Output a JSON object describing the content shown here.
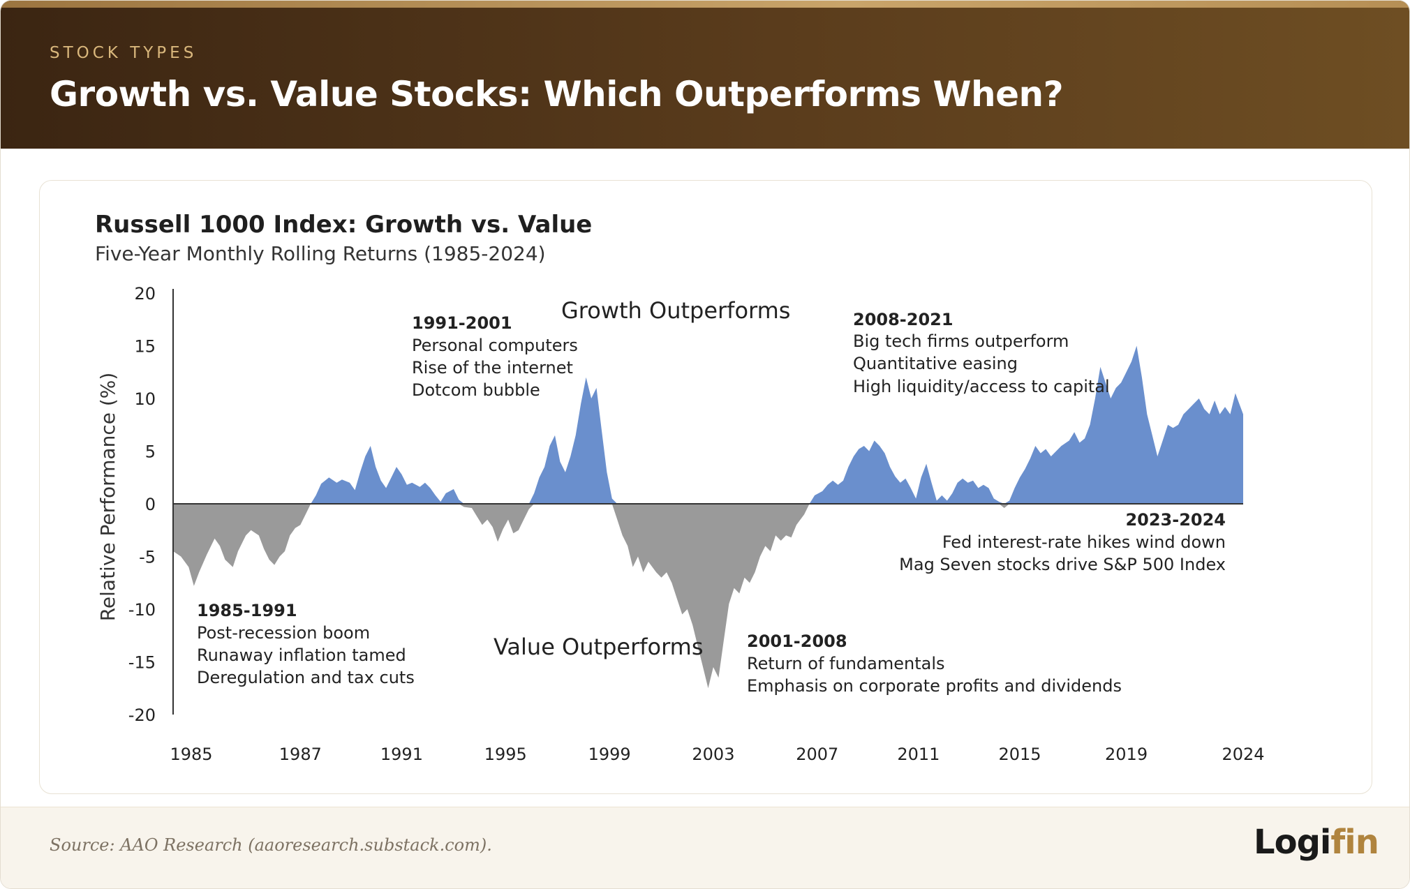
{
  "header": {
    "eyebrow": "STOCK TYPES",
    "title": "Growth vs. Value Stocks: Which Outperforms When?"
  },
  "footer": {
    "source": "Source: AAO Research (aaoresearch.substack.com).",
    "logo_part1": "Logi",
    "logo_part2": "fin"
  },
  "colors": {
    "growth": "#6a8fcd",
    "value": "#9a9a9a",
    "header_accent": "#d9b77c",
    "brand": "#b0843e"
  },
  "chart_data": {
    "type": "area",
    "title": "Russell 1000 Index: Growth vs. Value",
    "subtitle": "Five-Year Monthly Rolling Returns (1985-2024)",
    "ylabel": "Relative Performance (%)",
    "ylim": [
      -20,
      20
    ],
    "yticks": [
      "20",
      "15",
      "10",
      "5",
      "0",
      "-5",
      "-10",
      "-15",
      "-20"
    ],
    "xtick_labels": [
      "1985",
      "1987",
      "1991",
      "1995",
      "1999",
      "2003",
      "2007",
      "2011",
      "2015",
      "2019",
      "2024"
    ],
    "xtick_positions": [
      1985.0,
      1989.2,
      1993.1,
      1997.1,
      2001.1,
      2005.1,
      2009.1,
      2013.0,
      2016.9,
      2021.0,
      2025.5
    ],
    "xlim": [
      1984.3,
      2025.5
    ],
    "region_labels": {
      "positive": "Growth Outperforms",
      "negative": "Value Outperforms"
    },
    "annotations": [
      {
        "period": "1991-2001",
        "lines": [
          "Personal computers",
          "Rise of the internet",
          "Dotcom bubble"
        ]
      },
      {
        "period": "2008-2021",
        "lines": [
          "Big tech firms outperform",
          "Quantitative easing",
          "High liquidity/access to capital"
        ]
      },
      {
        "period": "2023-2024",
        "lines": [
          "Fed interest-rate hikes wind down",
          "Mag Seven stocks drive S&P 500 Index"
        ]
      },
      {
        "period": "1985-1991",
        "lines": [
          "Post-recession boom",
          "Runaway inflation tamed",
          "Deregulation and tax cuts"
        ]
      },
      {
        "period": "2001-2008",
        "lines": [
          "Return of fundamentals",
          "Emphasis on corporate profits and dividends"
        ]
      }
    ],
    "series": [
      {
        "points": [
          [
            1984.3,
            -4.5
          ],
          [
            1984.6,
            -5.0
          ],
          [
            1984.9,
            -6.0
          ],
          [
            1985.1,
            -7.8
          ],
          [
            1985.3,
            -6.5
          ],
          [
            1985.6,
            -4.8
          ],
          [
            1985.9,
            -3.3
          ],
          [
            1986.1,
            -4.0
          ],
          [
            1986.3,
            -5.3
          ],
          [
            1986.6,
            -6.0
          ],
          [
            1986.8,
            -4.5
          ],
          [
            1987.1,
            -3.0
          ],
          [
            1987.3,
            -2.5
          ],
          [
            1987.6,
            -3.0
          ],
          [
            1987.8,
            -4.3
          ],
          [
            1988.0,
            -5.3
          ],
          [
            1988.2,
            -5.8
          ],
          [
            1988.4,
            -5.0
          ],
          [
            1988.6,
            -4.5
          ],
          [
            1988.8,
            -3.0
          ],
          [
            1989.0,
            -2.3
          ],
          [
            1989.2,
            -2.0
          ],
          [
            1989.4,
            -1.0
          ],
          [
            1989.6,
            0.0
          ],
          [
            1989.8,
            0.8
          ],
          [
            1990.0,
            1.9
          ],
          [
            1990.3,
            2.5
          ],
          [
            1990.6,
            2.0
          ],
          [
            1990.8,
            2.3
          ],
          [
            1991.1,
            2.0
          ],
          [
            1991.3,
            1.3
          ],
          [
            1991.5,
            3.0
          ],
          [
            1991.7,
            4.5
          ],
          [
            1991.9,
            5.5
          ],
          [
            1992.1,
            3.5
          ],
          [
            1992.3,
            2.2
          ],
          [
            1992.5,
            1.5
          ],
          [
            1992.7,
            2.5
          ],
          [
            1992.9,
            3.5
          ],
          [
            1993.1,
            2.8
          ],
          [
            1993.3,
            1.8
          ],
          [
            1993.5,
            2.0
          ],
          [
            1993.8,
            1.6
          ],
          [
            1994.0,
            2.0
          ],
          [
            1994.2,
            1.5
          ],
          [
            1994.4,
            0.8
          ],
          [
            1994.6,
            0.2
          ],
          [
            1994.8,
            1.0
          ],
          [
            1995.1,
            1.4
          ],
          [
            1995.3,
            0.4
          ],
          [
            1995.5,
            -0.3
          ],
          [
            1995.8,
            -0.4
          ],
          [
            1996.0,
            -1.2
          ],
          [
            1996.2,
            -2.0
          ],
          [
            1996.4,
            -1.5
          ],
          [
            1996.6,
            -2.2
          ],
          [
            1996.8,
            -3.6
          ],
          [
            1997.0,
            -2.4
          ],
          [
            1997.2,
            -1.5
          ],
          [
            1997.4,
            -2.8
          ],
          [
            1997.6,
            -2.5
          ],
          [
            1997.8,
            -1.5
          ],
          [
            1998.0,
            -0.5
          ],
          [
            1998.2,
            1.0
          ],
          [
            1998.4,
            2.5
          ],
          [
            1998.6,
            3.5
          ],
          [
            1998.8,
            5.5
          ],
          [
            1999.0,
            6.5
          ],
          [
            1999.2,
            4.0
          ],
          [
            1999.4,
            3.0
          ],
          [
            1999.6,
            4.5
          ],
          [
            1999.8,
            6.5
          ],
          [
            2000.0,
            9.5
          ],
          [
            2000.2,
            12.0
          ],
          [
            2000.4,
            10.0
          ],
          [
            2000.6,
            11.0
          ],
          [
            2000.8,
            7.0
          ],
          [
            2001.0,
            3.0
          ],
          [
            2001.2,
            0.5
          ],
          [
            2001.4,
            -1.5
          ],
          [
            2001.6,
            -3.0
          ],
          [
            2001.8,
            -4.0
          ],
          [
            2002.0,
            -6.0
          ],
          [
            2002.2,
            -5.0
          ],
          [
            2002.4,
            -6.5
          ],
          [
            2002.6,
            -5.5
          ],
          [
            2002.9,
            -6.5
          ],
          [
            2003.1,
            -7.0
          ],
          [
            2003.3,
            -6.5
          ],
          [
            2003.5,
            -7.5
          ],
          [
            2003.7,
            -9.0
          ],
          [
            2003.9,
            -10.5
          ],
          [
            2004.1,
            -10.0
          ],
          [
            2004.3,
            -11.5
          ],
          [
            2004.5,
            -13.5
          ],
          [
            2004.7,
            -15.5
          ],
          [
            2004.9,
            -17.5
          ],
          [
            2005.1,
            -15.5
          ],
          [
            2005.3,
            -16.5
          ],
          [
            2005.5,
            -13.0
          ],
          [
            2005.7,
            -9.5
          ],
          [
            2005.9,
            -8.0
          ],
          [
            2006.1,
            -8.5
          ],
          [
            2006.3,
            -7.0
          ],
          [
            2006.5,
            -7.5
          ],
          [
            2006.7,
            -6.5
          ],
          [
            2006.9,
            -5.0
          ],
          [
            2007.1,
            -4.0
          ],
          [
            2007.3,
            -4.5
          ],
          [
            2007.5,
            -3.0
          ],
          [
            2007.7,
            -3.5
          ],
          [
            2007.9,
            -3.0
          ],
          [
            2008.1,
            -3.2
          ],
          [
            2008.3,
            -2.0
          ],
          [
            2008.6,
            -1.0
          ],
          [
            2008.8,
            0.0
          ],
          [
            2009.0,
            0.8
          ],
          [
            2009.3,
            1.2
          ],
          [
            2009.5,
            1.8
          ],
          [
            2009.7,
            2.2
          ],
          [
            2009.9,
            1.8
          ],
          [
            2010.1,
            2.2
          ],
          [
            2010.3,
            3.5
          ],
          [
            2010.5,
            4.5
          ],
          [
            2010.7,
            5.2
          ],
          [
            2010.9,
            5.5
          ],
          [
            2011.1,
            5.0
          ],
          [
            2011.3,
            6.0
          ],
          [
            2011.5,
            5.5
          ],
          [
            2011.7,
            4.8
          ],
          [
            2011.9,
            3.5
          ],
          [
            2012.1,
            2.6
          ],
          [
            2012.3,
            2.0
          ],
          [
            2012.5,
            2.4
          ],
          [
            2012.7,
            1.5
          ],
          [
            2012.9,
            0.5
          ],
          [
            2013.1,
            2.5
          ],
          [
            2013.3,
            3.8
          ],
          [
            2013.5,
            2.0
          ],
          [
            2013.7,
            0.3
          ],
          [
            2013.9,
            0.8
          ],
          [
            2014.1,
            0.3
          ],
          [
            2014.3,
            1.0
          ],
          [
            2014.5,
            2.0
          ],
          [
            2014.7,
            2.4
          ],
          [
            2014.9,
            2.0
          ],
          [
            2015.1,
            2.2
          ],
          [
            2015.3,
            1.5
          ],
          [
            2015.5,
            1.8
          ],
          [
            2015.7,
            1.5
          ],
          [
            2015.9,
            0.5
          ],
          [
            2016.1,
            0.2
          ],
          [
            2016.3,
            -0.4
          ],
          [
            2016.5,
            0.3
          ],
          [
            2016.7,
            1.5
          ],
          [
            2016.9,
            2.5
          ],
          [
            2017.1,
            3.3
          ],
          [
            2017.3,
            4.3
          ],
          [
            2017.5,
            5.5
          ],
          [
            2017.7,
            4.8
          ],
          [
            2017.9,
            5.2
          ],
          [
            2018.1,
            4.5
          ],
          [
            2018.3,
            5.0
          ],
          [
            2018.5,
            5.5
          ],
          [
            2018.8,
            6.0
          ],
          [
            2019.0,
            6.8
          ],
          [
            2019.2,
            5.8
          ],
          [
            2019.4,
            6.2
          ],
          [
            2019.6,
            7.5
          ],
          [
            2019.8,
            10.0
          ],
          [
            2020.0,
            13.0
          ],
          [
            2020.2,
            11.5
          ],
          [
            2020.4,
            10.0
          ],
          [
            2020.6,
            11.0
          ],
          [
            2020.8,
            11.5
          ],
          [
            2021.0,
            12.5
          ],
          [
            2021.2,
            13.5
          ],
          [
            2021.4,
            15.0
          ],
          [
            2021.6,
            12.0
          ],
          [
            2021.8,
            8.5
          ],
          [
            2022.0,
            6.5
          ],
          [
            2022.2,
            4.5
          ],
          [
            2022.4,
            6.0
          ],
          [
            2022.6,
            7.5
          ],
          [
            2022.8,
            7.2
          ],
          [
            2023.0,
            7.5
          ],
          [
            2023.2,
            8.5
          ],
          [
            2023.4,
            9.0
          ],
          [
            2023.6,
            9.5
          ],
          [
            2023.8,
            10.0
          ],
          [
            2024.0,
            9.0
          ],
          [
            2024.2,
            8.5
          ],
          [
            2024.4,
            9.8
          ],
          [
            2024.6,
            8.5
          ],
          [
            2024.8,
            9.2
          ],
          [
            2025.0,
            8.5
          ],
          [
            2025.2,
            10.5
          ],
          [
            2025.5,
            8.5
          ]
        ]
      }
    ]
  }
}
